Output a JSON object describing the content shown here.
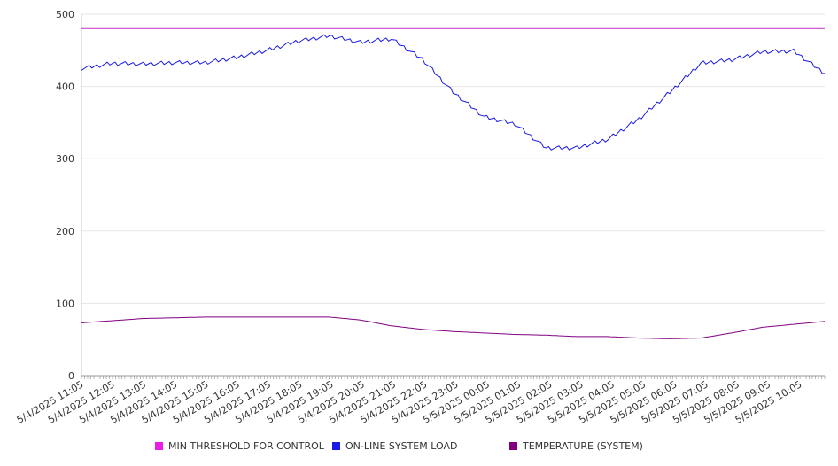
{
  "chart_data": {
    "type": "line",
    "title": "",
    "xlabel": "",
    "ylabel": "",
    "ylim": [
      0,
      500
    ],
    "y_ticks": [
      "0",
      "100",
      "200",
      "300",
      "400",
      "500"
    ],
    "y_tick_values": [
      0,
      100,
      200,
      300,
      400,
      500
    ],
    "grid": true,
    "legend_position": "bottom",
    "x_tick_labels": [
      "5/4/2025 11:05",
      "5/4/2025 12:05",
      "5/4/2025 13:05",
      "5/4/2025 14:05",
      "5/4/2025 15:05",
      "5/4/2025 16:05",
      "5/4/2025 17:05",
      "5/4/2025 18:05",
      "5/4/2025 19:05",
      "5/4/2025 20:05",
      "5/4/2025 21:05",
      "5/4/2025 22:05",
      "5/4/2025 23:05",
      "5/5/2025 00:05",
      "5/5/2025 01:05",
      "5/5/2025 02:05",
      "5/5/2025 03:05",
      "5/5/2025 04:05",
      "5/5/2025 05:05",
      "5/5/2025 06:05",
      "5/5/2025 07:05",
      "5/5/2025 08:05",
      "5/5/2025 09:05",
      "5/5/2025 10:05"
    ],
    "series": [
      {
        "name": "MIN THRESHOLD FOR CONTROL",
        "color": "#e81ee8",
        "line_color": "#c030c8",
        "values": [
          480,
          480,
          480,
          480,
          480,
          480,
          480,
          480,
          480,
          480,
          480,
          480,
          480,
          480,
          480,
          480,
          480,
          480,
          480,
          480,
          480,
          480,
          480,
          480,
          480
        ]
      },
      {
        "name": "ON-LINE SYSTEM LOAD",
        "color": "#1a1ae6",
        "line_color": "#1a1ae6",
        "values": [
          425,
          432,
          431,
          433,
          433,
          440,
          450,
          463,
          470,
          461,
          466,
          438,
          392,
          358,
          348,
          315,
          315,
          327,
          355,
          392,
          432,
          437,
          448,
          449,
          418
        ]
      },
      {
        "name": "TEMPERATURE (SYSTEM)",
        "color": "#800080",
        "line_color": "#800080",
        "values": [
          73,
          76,
          79,
          80,
          81,
          81,
          81,
          81,
          81,
          77,
          69,
          64,
          61,
          59,
          57,
          56,
          54,
          54,
          52,
          51,
          52,
          59,
          67,
          71,
          75
        ]
      }
    ]
  }
}
